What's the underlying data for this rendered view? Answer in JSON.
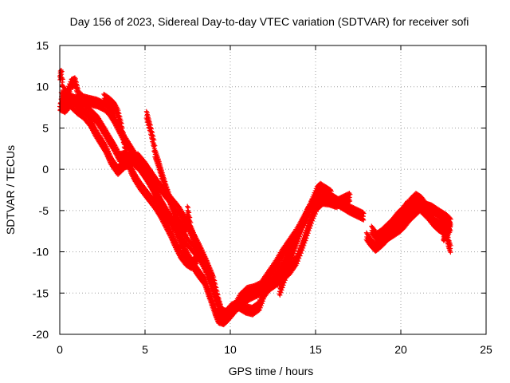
{
  "chart_data": {
    "type": "scatter",
    "title": "Day 156 of 2023, Sidereal Day-to-day VTEC variation (SDTVAR) for receiver sofi",
    "xlabel": "GPS time / hours",
    "ylabel": "SDTVAR / TECUs",
    "xlim": [
      0,
      25
    ],
    "ylim": [
      -20,
      15
    ],
    "xticks": [
      0,
      5,
      10,
      15,
      20,
      25
    ],
    "yticks": [
      -20,
      -15,
      -10,
      -5,
      0,
      5,
      10,
      15
    ],
    "grid": true,
    "marker": "+",
    "series": [
      {
        "name": "SDTVAR",
        "color": "#ff0000",
        "segments": [
          [
            [
              0.0,
              11.3
            ],
            [
              0.1,
              11.5
            ],
            [
              0.2,
              9.6
            ],
            [
              0.4,
              9.0
            ],
            [
              0.7,
              10.4
            ],
            [
              0.9,
              10.6
            ],
            [
              1.1,
              9.0
            ],
            [
              1.4,
              8.4
            ],
            [
              1.8,
              8.2
            ],
            [
              2.2,
              8.0
            ],
            [
              2.6,
              7.6
            ],
            [
              2.9,
              7.0
            ],
            [
              3.2,
              6.0
            ],
            [
              3.5,
              4.8
            ],
            [
              3.8,
              3.6
            ],
            [
              4.1,
              2.6
            ],
            [
              4.4,
              1.6
            ],
            [
              4.7,
              0.6
            ],
            [
              5.0,
              -0.5
            ],
            [
              5.3,
              -1.6
            ],
            [
              5.6,
              -2.8
            ],
            [
              5.9,
              -4.0
            ],
            [
              6.2,
              -5.2
            ],
            [
              6.6,
              -6.5
            ],
            [
              7.0,
              -7.6
            ],
            [
              7.4,
              -8.6
            ],
            [
              7.8,
              -9.6
            ],
            [
              8.2,
              -10.6
            ],
            [
              8.6,
              -12.2
            ],
            [
              8.9,
              -14.0
            ],
            [
              9.2,
              -15.8
            ],
            [
              9.4,
              -17.0
            ],
            [
              9.6,
              -17.8
            ],
            [
              9.8,
              -17.5
            ],
            [
              10.1,
              -16.8
            ],
            [
              10.5,
              -16.5
            ],
            [
              10.9,
              -17.0
            ],
            [
              11.3,
              -17.2
            ],
            [
              11.7,
              -16.6
            ],
            [
              12.0,
              -15.0
            ],
            [
              12.4,
              -13.8
            ],
            [
              12.8,
              -12.6
            ],
            [
              13.2,
              -11.4
            ],
            [
              13.5,
              -10.2
            ],
            [
              13.8,
              -8.6
            ],
            [
              14.1,
              -7.0
            ],
            [
              14.4,
              -5.8
            ],
            [
              14.7,
              -4.6
            ],
            [
              15.0,
              -3.5
            ],
            [
              15.3,
              -3.0
            ],
            [
              15.7,
              -3.2
            ],
            [
              16.0,
              -3.6
            ],
            [
              16.3,
              -4.0
            ],
            [
              16.6,
              -4.4
            ],
            [
              17.0,
              -4.9
            ],
            [
              17.4,
              -5.3
            ],
            [
              17.8,
              -5.7
            ]
          ],
          [
            [
              0.1,
              8.8
            ],
            [
              0.3,
              8.0
            ],
            [
              0.6,
              8.6
            ],
            [
              1.0,
              8.2
            ],
            [
              1.4,
              7.6
            ],
            [
              1.8,
              6.8
            ],
            [
              2.2,
              6.0
            ],
            [
              2.5,
              5.0
            ],
            [
              2.9,
              3.6
            ],
            [
              3.2,
              2.6
            ],
            [
              3.5,
              1.4
            ],
            [
              3.9,
              1.6
            ],
            [
              4.3,
              1.0
            ],
            [
              4.7,
              0.2
            ],
            [
              5.1,
              -1.0
            ],
            [
              5.5,
              -2.4
            ],
            [
              5.8,
              -3.6
            ],
            [
              6.2,
              -5.0
            ],
            [
              6.6,
              -6.4
            ],
            [
              7.0,
              -8.2
            ],
            [
              7.4,
              -10.2
            ],
            [
              7.8,
              -11.6
            ],
            [
              8.2,
              -12.8
            ],
            [
              8.5,
              -13.6
            ],
            [
              8.8,
              -15.4
            ],
            [
              9.1,
              -17.2
            ],
            [
              9.3,
              -18.2
            ],
            [
              9.6,
              -18.4
            ],
            [
              9.9,
              -17.8
            ],
            [
              10.3,
              -16.8
            ],
            [
              10.7,
              -16.0
            ],
            [
              11.1,
              -15.4
            ],
            [
              11.5,
              -15.0
            ],
            [
              11.9,
              -14.6
            ],
            [
              12.3,
              -14.2
            ],
            [
              12.7,
              -13.6
            ],
            [
              13.1,
              -13.0
            ],
            [
              13.5,
              -12.2
            ],
            [
              13.9,
              -11.0
            ],
            [
              14.2,
              -9.4
            ],
            [
              14.5,
              -7.6
            ],
            [
              14.8,
              -5.8
            ],
            [
              15.1,
              -4.4
            ],
            [
              15.4,
              -3.8
            ],
            [
              15.8,
              -3.9
            ],
            [
              16.2,
              -4.2
            ],
            [
              16.6,
              -3.8
            ],
            [
              17.0,
              -3.4
            ]
          ],
          [
            [
              0.0,
              7.6
            ],
            [
              0.3,
              7.3
            ],
            [
              0.6,
              8.0
            ],
            [
              1.0,
              7.2
            ],
            [
              1.4,
              6.6
            ],
            [
              1.8,
              5.6
            ],
            [
              2.1,
              4.4
            ],
            [
              2.4,
              3.4
            ],
            [
              2.7,
              2.4
            ],
            [
              3.0,
              1.0
            ],
            [
              3.4,
              -0.2
            ],
            [
              3.8,
              0.6
            ],
            [
              4.2,
              0.9
            ],
            [
              4.6,
              1.4
            ],
            [
              5.0,
              0.4
            ],
            [
              5.4,
              -0.8
            ],
            [
              5.8,
              -2.0
            ],
            [
              6.2,
              -3.0
            ],
            [
              6.6,
              -4.0
            ],
            [
              7.0,
              -5.0
            ],
            [
              7.4,
              -6.4
            ],
            [
              7.8,
              -8.0
            ],
            [
              8.2,
              -9.6
            ],
            [
              8.6,
              -11.4
            ],
            [
              9.0,
              -13.4
            ],
            [
              9.3,
              -16.0
            ],
            [
              9.5,
              -17.4
            ],
            [
              9.8,
              -17.6
            ],
            [
              10.2,
              -17.0
            ],
            [
              10.6,
              -15.6
            ],
            [
              11.0,
              -14.8
            ],
            [
              11.4,
              -14.6
            ],
            [
              11.8,
              -14.2
            ],
            [
              12.2,
              -13.0
            ],
            [
              12.6,
              -11.8
            ],
            [
              13.0,
              -10.4
            ],
            [
              13.4,
              -9.2
            ],
            [
              13.8,
              -8.0
            ],
            [
              14.1,
              -7.0
            ],
            [
              14.4,
              -6.0
            ]
          ],
          [
            [
              2.6,
              8.6
            ],
            [
              2.9,
              8.2
            ],
            [
              3.2,
              7.6
            ],
            [
              3.4,
              6.8
            ],
            [
              3.6,
              5.2
            ],
            [
              3.8,
              3.0
            ],
            [
              4.0,
              1.0
            ],
            [
              4.2,
              -0.2
            ],
            [
              4.4,
              -1.0
            ],
            [
              4.7,
              -2.0
            ],
            [
              5.0,
              -2.8
            ],
            [
              5.3,
              -3.6
            ],
            [
              5.6,
              -4.4
            ],
            [
              5.9,
              -5.4
            ],
            [
              6.2,
              -6.6
            ],
            [
              6.5,
              -7.8
            ],
            [
              6.8,
              -9.2
            ],
            [
              7.1,
              -10.4
            ],
            [
              7.4,
              -11.2
            ],
            [
              7.7,
              -11.6
            ],
            [
              8.0,
              -11.0
            ],
            [
              8.2,
              -10.0
            ]
          ],
          [
            [
              5.1,
              6.5
            ],
            [
              5.3,
              5.0
            ],
            [
              5.5,
              3.2
            ],
            [
              5.6,
              1.8
            ],
            [
              5.8,
              0.6
            ],
            [
              6.0,
              -0.8
            ],
            [
              6.2,
              -2.2
            ],
            [
              6.4,
              -3.4
            ],
            [
              6.6,
              -4.6
            ],
            [
              6.8,
              -5.8
            ],
            [
              7.0,
              -6.6
            ],
            [
              7.2,
              -7.2
            ],
            [
              7.4,
              -7.6
            ],
            [
              7.5,
              -5.0
            ],
            [
              7.7,
              -7.4
            ],
            [
              8.0,
              -9.0
            ],
            [
              8.3,
              -10.4
            ]
          ],
          [
            [
              12.9,
              -14.8
            ],
            [
              13.1,
              -13.6
            ],
            [
              13.3,
              -12.4
            ],
            [
              13.5,
              -11.0
            ],
            [
              13.7,
              -9.8
            ],
            [
              13.9,
              -8.6
            ],
            [
              14.1,
              -7.4
            ],
            [
              14.3,
              -6.4
            ],
            [
              14.5,
              -5.4
            ],
            [
              14.7,
              -4.6
            ],
            [
              14.9,
              -3.6
            ],
            [
              15.1,
              -2.6
            ],
            [
              15.3,
              -2.2
            ],
            [
              15.6,
              -2.6
            ],
            [
              15.9,
              -3.0
            ]
          ],
          [
            [
              18.0,
              -8.2
            ],
            [
              18.2,
              -8.8
            ],
            [
              18.5,
              -9.5
            ],
            [
              18.8,
              -9.0
            ],
            [
              19.1,
              -8.4
            ],
            [
              19.4,
              -7.6
            ],
            [
              19.7,
              -7.0
            ],
            [
              20.0,
              -6.2
            ],
            [
              20.3,
              -5.0
            ],
            [
              20.6,
              -4.0
            ],
            [
              20.9,
              -3.4
            ],
            [
              21.2,
              -3.8
            ],
            [
              21.5,
              -4.6
            ],
            [
              21.8,
              -4.8
            ],
            [
              22.1,
              -5.2
            ],
            [
              22.4,
              -5.6
            ],
            [
              22.7,
              -6.0
            ],
            [
              22.9,
              -6.4
            ]
          ],
          [
            [
              18.3,
              -7.4
            ],
            [
              18.6,
              -8.2
            ],
            [
              18.9,
              -7.8
            ],
            [
              19.2,
              -7.2
            ],
            [
              19.5,
              -6.6
            ],
            [
              19.8,
              -5.8
            ],
            [
              20.1,
              -5.2
            ],
            [
              20.4,
              -4.4
            ],
            [
              20.7,
              -4.4
            ],
            [
              21.0,
              -4.2
            ],
            [
              21.3,
              -4.8
            ],
            [
              21.6,
              -5.6
            ],
            [
              21.9,
              -6.4
            ],
            [
              22.2,
              -7.0
            ],
            [
              22.5,
              -7.4
            ],
            [
              22.7,
              -8.2
            ],
            [
              22.8,
              -9.0
            ],
            [
              22.9,
              -9.6
            ]
          ],
          [
            [
              19.0,
              -8.4
            ],
            [
              19.3,
              -8.0
            ],
            [
              19.6,
              -7.6
            ],
            [
              19.9,
              -7.2
            ],
            [
              20.2,
              -6.6
            ],
            [
              20.5,
              -5.8
            ],
            [
              20.8,
              -5.2
            ],
            [
              21.1,
              -4.6
            ],
            [
              21.4,
              -5.2
            ],
            [
              21.7,
              -5.8
            ],
            [
              22.0,
              -6.6
            ],
            [
              22.3,
              -6.8
            ],
            [
              22.6,
              -6.6
            ],
            [
              22.9,
              -7.0
            ],
            [
              22.7,
              -7.8
            ],
            [
              22.5,
              -8.2
            ]
          ]
        ]
      }
    ]
  }
}
